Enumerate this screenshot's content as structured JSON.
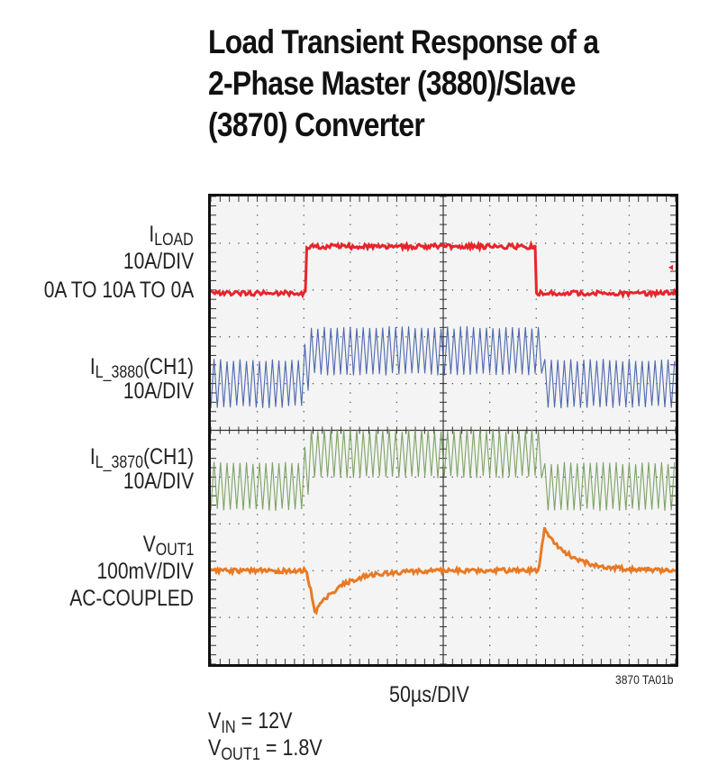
{
  "title": {
    "line1": "Load Transient Response of a",
    "line2": "2-Phase Master (3880)/Slave",
    "line3": "(3870) Converter"
  },
  "channels": {
    "iload": {
      "name_main": "I",
      "name_sub": "LOAD",
      "scale": "10A/DIV",
      "note": "0A TO 10A TO 0A",
      "color": "#e8242a"
    },
    "il3880": {
      "name_main": "I",
      "name_sub": "L_3880",
      "name_suffix": "(CH1)",
      "scale": "10A/DIV",
      "color": "#3a5aa6"
    },
    "il3870": {
      "name_main": "I",
      "name_sub": "L_3870",
      "name_suffix": "(CH1)",
      "scale": "10A/DIV",
      "color": "#6f9a55"
    },
    "vout1": {
      "name_main": "V",
      "name_sub": "OUT1",
      "scale": "100mV/DIV",
      "note": "AC-COUPLED",
      "color": "#e87a24"
    }
  },
  "xaxis": {
    "label": "50µs/DIV"
  },
  "figure_id": "3870 TA01b",
  "conditions": {
    "vin": {
      "main": "V",
      "sub": "IN",
      "value": " = 12V"
    },
    "vout": {
      "main": "V",
      "sub": "OUT1",
      "value": " = 1.8V"
    }
  },
  "chart_data": {
    "type": "line",
    "title": "Load Transient Response of a 2-Phase Master (3880)/Slave (3870) Converter",
    "xlabel": "50µs/DIV",
    "ylabel": "",
    "grid": true,
    "grid_divisions": {
      "x": 10,
      "y": 10
    },
    "x_units": "div (50µs/div)",
    "x": [
      0,
      2.0,
      2.05,
      7.0,
      7.05,
      10
    ],
    "series": [
      {
        "name": "ILOAD (10A/DIV, 0A to 10A to 0A)",
        "color": "#e8242a",
        "y_div_from_top": [
          2.0,
          2.0,
          1.0,
          1.0,
          2.0,
          2.0
        ],
        "values_A": [
          0,
          0,
          10,
          10,
          0,
          0
        ]
      },
      {
        "name": "IL_3880(CH1) (10A/DIV)",
        "color": "#3a5aa6",
        "center_div_from_top": [
          4.0,
          4.0,
          3.3,
          3.3,
          4.0,
          4.0
        ],
        "ripple_pp_div": 1.0,
        "values_A_avg": [
          0,
          0,
          5,
          5,
          0,
          0
        ]
      },
      {
        "name": "IL_3870(CH1) (10A/DIV)",
        "color": "#6f9a55",
        "center_div_from_top": [
          6.2,
          6.2,
          5.5,
          5.5,
          6.2,
          6.2
        ],
        "ripple_pp_div": 1.0,
        "values_A_avg": [
          0,
          0,
          5,
          5,
          0,
          0
        ]
      },
      {
        "name": "VOUT1 (100mV/DIV, AC-coupled)",
        "color": "#e87a24",
        "center_div_from_top": 8.0,
        "events": [
          {
            "at_div": 2.0,
            "type": "undershoot",
            "peak_mV": -100,
            "recovery_div": 1.2
          },
          {
            "at_div": 7.0,
            "type": "overshoot",
            "peak_mV": 100,
            "recovery_div": 1.2
          }
        ]
      }
    ],
    "annotations": [
      "3870 TA01b"
    ],
    "conditions": [
      "VIN = 12V",
      "VOUT1 = 1.8V"
    ]
  }
}
